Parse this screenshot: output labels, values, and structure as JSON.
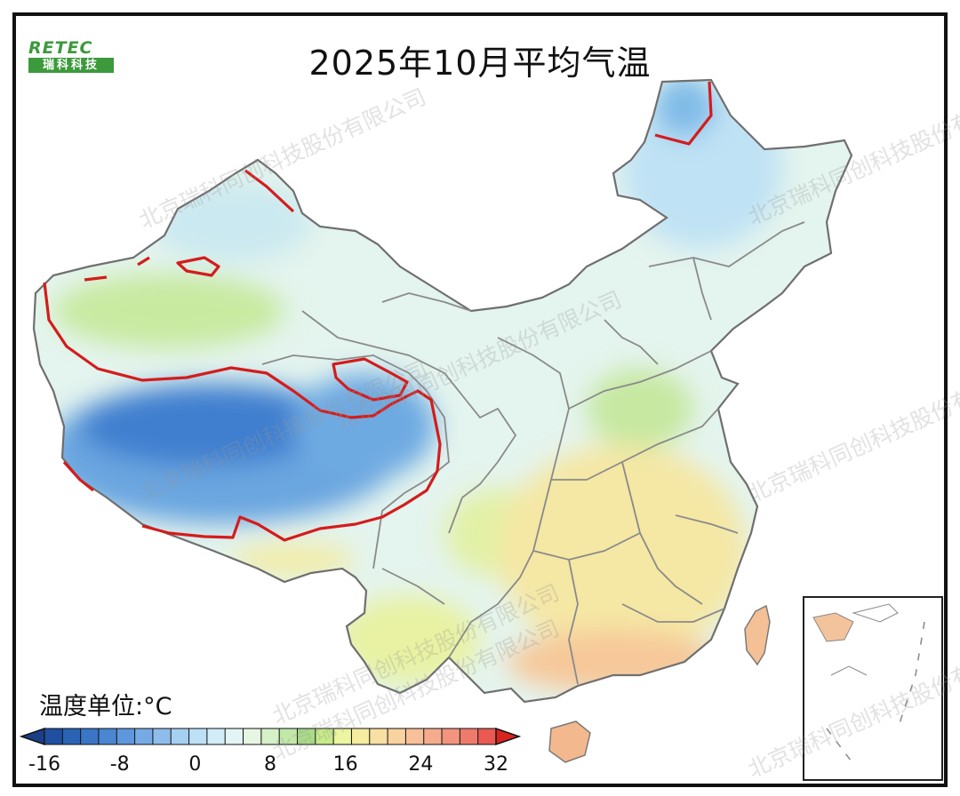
{
  "title": "2025年10月平均气温",
  "logo": {
    "brand": "RETEC",
    "name": "瑞科科技"
  },
  "legend": {
    "unit_label": "温度单位:°C",
    "ticks": [
      "-16",
      "-8",
      "0",
      "8",
      "16",
      "24",
      "32"
    ],
    "colors": [
      "#1f4f9e",
      "#2a62b4",
      "#3a75c6",
      "#4a86d2",
      "#5f97dc",
      "#76aae4",
      "#8ebdec",
      "#a6d0f2",
      "#bde0f6",
      "#d2ecf8",
      "#e2f4f4",
      "#e6f6e2",
      "#d6f0c8",
      "#c2e8a8",
      "#aadc88",
      "#c8eb8a",
      "#ecf5a0",
      "#f6eca0",
      "#f8e0a2",
      "#f8d2a0",
      "#f7c098",
      "#f5ac8c",
      "#f2947e",
      "#ee7a6c",
      "#e85a52"
    ],
    "end_colors": {
      "low": "#1a3f86",
      "high": "#d7251d"
    }
  },
  "watermark": "北京瑞科同创科技股份有限公司",
  "colors": {
    "contour_line": "#d41c1c",
    "province_border": "#7a7a7a",
    "cold": "#4a88d6",
    "cool": "#a8d4f0",
    "mild": "#dff2ea",
    "green": "#c6eaa0",
    "warm": "#f6e8a4",
    "hot": "#f6c89a"
  }
}
